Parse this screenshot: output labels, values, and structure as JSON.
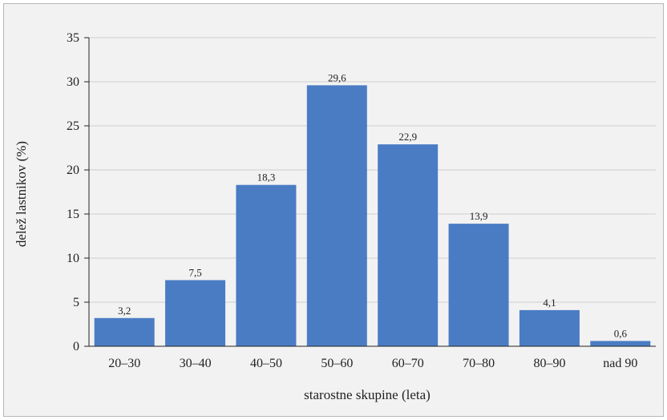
{
  "chart_data": {
    "type": "bar",
    "categories": [
      "20–30",
      "30–40",
      "40–50",
      "50–60",
      "60–70",
      "70–80",
      "80–90",
      "nad 90"
    ],
    "values": [
      3.2,
      7.5,
      18.3,
      29.6,
      22.9,
      13.9,
      4.1,
      0.6
    ],
    "value_labels": [
      "3,2",
      "7,5",
      "18,3",
      "29,6",
      "22,9",
      "13,9",
      "4,1",
      "0,6"
    ],
    "xlabel": "starostne skupine  (leta)",
    "ylabel": "delež lastnikov (%)",
    "ylim": [
      0,
      35
    ],
    "yticks": [
      "0",
      "5",
      "10",
      "15",
      "20",
      "25",
      "30",
      "35"
    ],
    "grid": true,
    "legend": "none",
    "colors": {
      "bar": "#4a7cc4",
      "grid": "#cfcfcf",
      "axis": "#222222",
      "background": "#f2f2f2"
    }
  }
}
